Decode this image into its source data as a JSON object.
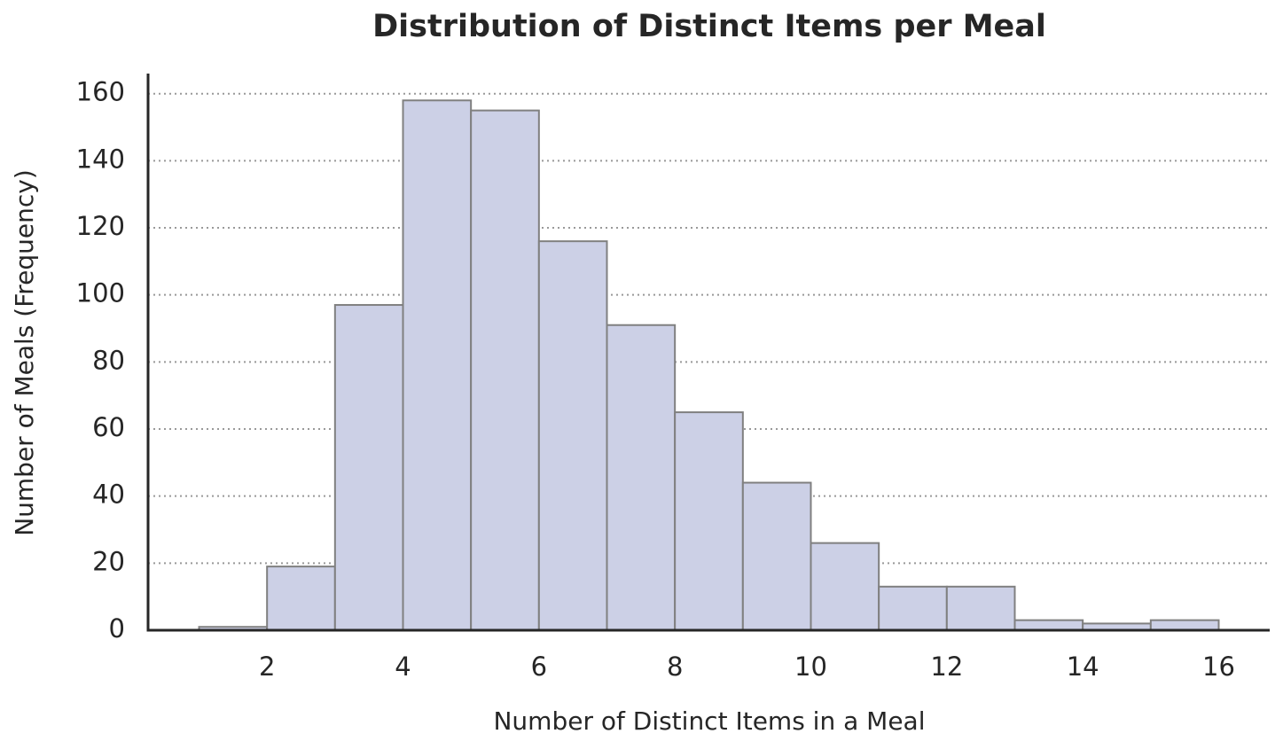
{
  "chart_data": {
    "type": "histogram",
    "title": "Distribution of Distinct Items per Meal",
    "x_label": "Number of Distinct Items in a Meal",
    "y_label": "Number of Meals (Frequency)",
    "bins": [
      1,
      2,
      3,
      4,
      5,
      6,
      7,
      8,
      9,
      10,
      11,
      12,
      13,
      14,
      15,
      16
    ],
    "values": [
      1,
      19,
      97,
      158,
      155,
      116,
      91,
      65,
      44,
      26,
      13,
      13,
      3,
      2,
      3
    ],
    "color": "#ccd0e6",
    "edge_color": "#808080",
    "xlim": [
      0.25,
      16.75
    ],
    "ylim": [
      0,
      166
    ],
    "xticks": [
      2,
      4,
      6,
      8,
      10,
      12,
      14,
      16
    ],
    "yticks": [
      0,
      20,
      40,
      60,
      80,
      100,
      120,
      140,
      160
    ],
    "grid": true
  }
}
